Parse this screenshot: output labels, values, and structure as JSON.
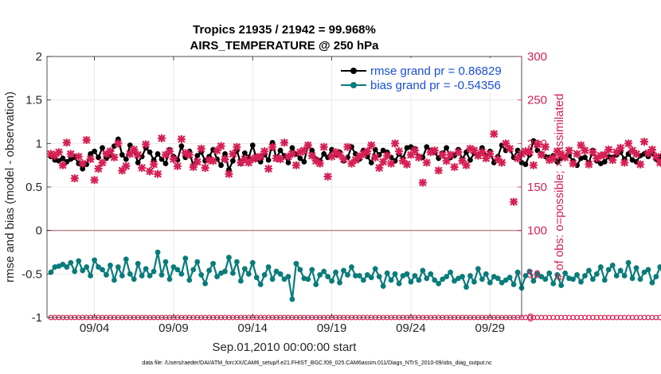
{
  "chart_data": {
    "type": "line",
    "title_line1": "Tropics 21935 / 21942 = 99.968%",
    "title_line2": "AIRS_TEMPERATURE @ 250 hPa",
    "xlabel": "Sep.01,2010 00:00:00 start",
    "ylabel_left": "rmse and bias (model - observation)",
    "ylabel_right": "# of obs: o=possible; ×=assimilated",
    "xlim": [
      1.0,
      31.0
    ],
    "ylim_left": [
      -1,
      2
    ],
    "ylim_right": [
      0,
      300
    ],
    "x_ticks": [
      {
        "value": 4,
        "label": "09/04"
      },
      {
        "value": 9,
        "label": "09/09"
      },
      {
        "value": 14,
        "label": "09/14"
      },
      {
        "value": 19,
        "label": "09/19"
      },
      {
        "value": 24,
        "label": "09/24"
      },
      {
        "value": 29,
        "label": "09/29"
      }
    ],
    "y_ticks_left": [
      {
        "value": 2,
        "label": "2"
      },
      {
        "value": 1.5,
        "label": "1.5"
      },
      {
        "value": 1,
        "label": "1"
      },
      {
        "value": 0.5,
        "label": "0.5"
      },
      {
        "value": 0,
        "label": "0"
      },
      {
        "value": -0.5,
        "label": "-0.5"
      },
      {
        "value": -1,
        "label": "-1"
      }
    ],
    "y_ticks_right": [
      {
        "value": 300,
        "label": "300"
      },
      {
        "value": 250,
        "label": "250"
      },
      {
        "value": 200,
        "label": "200"
      },
      {
        "value": 150,
        "label": "150"
      },
      {
        "value": 100,
        "label": "100"
      },
      {
        "value": 50,
        "label": "50"
      },
      {
        "value": 0,
        "label": "0"
      }
    ],
    "x_start": 1.25,
    "x_step": 0.25,
    "legend": [
      {
        "label": "rmse grand pr = 0.86829",
        "color": "#000000"
      },
      {
        "label": "bias grand pr = -0.54356",
        "color": "#0a7b7b"
      }
    ],
    "series": [
      {
        "name": "rmse",
        "axis": "left",
        "color": "#000000",
        "values": [
          0.85,
          0.81,
          0.8,
          0.83,
          0.79,
          0.82,
          0.84,
          0.77,
          0.71,
          0.76,
          0.88,
          0.91,
          0.84,
          0.95,
          0.83,
          0.86,
          0.97,
          1.05,
          0.87,
          0.82,
          0.98,
          0.92,
          0.78,
          0.85,
          0.95,
          0.9,
          0.81,
          0.88,
          0.82,
          0.77,
          0.93,
          0.85,
          0.81,
          0.97,
          0.84,
          0.91,
          0.74,
          0.86,
          0.9,
          0.8,
          0.85,
          0.93,
          0.82,
          0.75,
          0.88,
          0.7,
          0.8,
          0.92,
          0.77,
          0.89,
          0.84,
          0.98,
          0.82,
          0.79,
          0.87,
          0.81,
          1.01,
          0.83,
          0.92,
          0.86,
          0.78,
          0.95,
          0.88,
          0.83,
          0.79,
          0.98,
          0.92,
          0.82,
          0.8,
          0.88,
          0.84,
          0.93,
          0.87,
          0.9,
          0.8,
          0.84,
          0.96,
          0.88,
          0.82,
          0.92,
          0.85,
          0.78,
          0.93,
          0.87,
          0.92,
          0.9,
          0.84,
          0.8,
          0.88,
          0.83,
          0.95,
          0.96,
          0.94,
          0.85,
          0.84,
          0.96,
          0.92,
          0.9,
          0.83,
          0.89,
          0.95,
          0.84,
          0.86,
          0.93,
          0.82,
          0.9,
          0.81,
          0.89,
          0.86,
          0.95,
          0.86,
          0.91,
          0.78,
          0.85,
          0.98,
          0.92,
          0.94,
          0.84,
          0.92,
          0.78,
          0.76,
          0.87,
          1.03,
          0.92,
          0.88,
          0.85,
          0.84,
          0.86,
          0.79,
          0.83,
          0.85,
          0.86,
          0.8,
          0.75,
          0.83,
          0.84,
          0.78,
          0.92,
          0.8,
          0.77,
          0.79,
          0.85,
          0.84,
          0.87,
          0.9,
          0.82,
          0.88,
          0.81,
          0.79,
          0.86,
          0.88,
          0.85,
          0.89,
          0.82,
          0.84,
          0.87,
          0.92,
          0.85,
          0.8,
          0.84,
          0.88,
          0.83,
          0.9,
          0.88,
          1.14,
          0.95,
          0.89,
          0.91,
          0.92,
          1.12,
          0.93,
          0.85,
          0.88
        ]
      },
      {
        "name": "bias",
        "axis": "left",
        "color": "#0a7b7b",
        "values": [
          -0.48,
          -0.42,
          -0.41,
          -0.39,
          -0.42,
          -0.37,
          -0.47,
          -0.35,
          -0.46,
          -0.42,
          -0.52,
          -0.34,
          -0.42,
          -0.45,
          -0.51,
          -0.4,
          -0.57,
          -0.42,
          -0.52,
          -0.33,
          -0.5,
          -0.56,
          -0.38,
          -0.52,
          -0.44,
          -0.52,
          -0.47,
          -0.25,
          -0.51,
          -0.36,
          -0.56,
          -0.42,
          -0.45,
          -0.5,
          -0.32,
          -0.57,
          -0.45,
          -0.36,
          -0.51,
          -0.61,
          -0.46,
          -0.38,
          -0.53,
          -0.49,
          -0.47,
          -0.31,
          -0.49,
          -0.36,
          -0.58,
          -0.44,
          -0.5,
          -0.37,
          -0.54,
          -0.62,
          -0.51,
          -0.42,
          -0.56,
          -0.47,
          -0.5,
          -0.56,
          -0.53,
          -0.79,
          -0.38,
          -0.45,
          -0.55,
          -0.56,
          -0.45,
          -0.62,
          -0.51,
          -0.47,
          -0.53,
          -0.58,
          -0.48,
          -0.6,
          -0.46,
          -0.51,
          -0.42,
          -0.52,
          -0.52,
          -0.57,
          -0.51,
          -0.54,
          -0.44,
          -0.53,
          -0.64,
          -0.49,
          -0.57,
          -0.5,
          -0.61,
          -0.52,
          -0.5,
          -0.59,
          -0.52,
          -0.57,
          -0.46,
          -0.55,
          -0.5,
          -0.57,
          -0.61,
          -0.56,
          -0.53,
          -0.48,
          -0.58,
          -0.55,
          -0.53,
          -0.65,
          -0.52,
          -0.59,
          -0.44,
          -0.56,
          -0.5,
          -0.6,
          -0.53,
          -0.55,
          -0.6,
          -0.57,
          -0.54,
          -0.62,
          -0.48,
          -0.66,
          -0.52,
          -0.47,
          -0.58,
          -0.5,
          -0.53,
          -0.56,
          -0.49,
          -0.61,
          -0.51,
          -0.63,
          -0.49,
          -0.55,
          -0.56,
          -0.51,
          -0.59,
          -0.52,
          -0.46,
          -0.56,
          -0.5,
          -0.42,
          -0.57,
          -0.45,
          -0.4,
          -0.52,
          -0.46,
          -0.52,
          -0.37,
          -0.55,
          -0.43,
          -0.56,
          -0.48,
          -0.45,
          -0.6,
          -0.53,
          -0.42,
          -0.54,
          -0.5,
          -0.6,
          -0.55,
          -0.55,
          -0.56,
          -0.53,
          -0.52,
          -0.56,
          -0.5,
          -0.64,
          -0.7,
          -0.57,
          -0.55,
          -0.62,
          -0.81,
          -0.63,
          -0.59,
          -0.74,
          -0.64,
          -0.58,
          -0.59
        ]
      },
      {
        "name": "obs possible",
        "axis": "right",
        "color": "#d62054",
        "marker": "o",
        "values": [
          0,
          0,
          0,
          0,
          0,
          0,
          0,
          0,
          0,
          0,
          0,
          0,
          0,
          0,
          0,
          0,
          0,
          0,
          0,
          0,
          0,
          0,
          0,
          0,
          0,
          0,
          0,
          0,
          0,
          0,
          0,
          0,
          0,
          0,
          0,
          0,
          0,
          0,
          0,
          0,
          0,
          0,
          0,
          0,
          0,
          0,
          0,
          0,
          0,
          0,
          0,
          0,
          0,
          0,
          0,
          0,
          0,
          0,
          0,
          0,
          0,
          0,
          0,
          0,
          0,
          0,
          0,
          0,
          0,
          0,
          0,
          0,
          0,
          0,
          0,
          0,
          0,
          0,
          0,
          0,
          0,
          0,
          0,
          0,
          0,
          0,
          0,
          0,
          0,
          0,
          0,
          0,
          0,
          0,
          0,
          0,
          0,
          0,
          0,
          0,
          0,
          0,
          0,
          0,
          0,
          0,
          0,
          0,
          0,
          0,
          0,
          0,
          0,
          0,
          0,
          0,
          0,
          0,
          0,
          0,
          0,
          0,
          0,
          0,
          0,
          0,
          0,
          0,
          0,
          0,
          0,
          0,
          0,
          0,
          0,
          0,
          0,
          0,
          0,
          0,
          0,
          0,
          0,
          0,
          0,
          0,
          0,
          0,
          0,
          0,
          0,
          0,
          0,
          0,
          0,
          0,
          0,
          0,
          0,
          0,
          0,
          0,
          0,
          0,
          0,
          0,
          0,
          0,
          0,
          0,
          0,
          0,
          0,
          0,
          0,
          0,
          0,
          0,
          0,
          0
        ]
      },
      {
        "name": "obs assimilated",
        "axis": "right",
        "color": "#d62054",
        "marker": "x",
        "values": [
          188,
          186,
          190,
          175,
          201,
          188,
          160,
          185,
          177,
          204,
          182,
          158,
          171,
          178,
          188,
          191,
          184,
          200,
          169,
          174,
          188,
          193,
          187,
          172,
          199,
          168,
          176,
          165,
          206,
          187,
          191,
          182,
          174,
          205,
          189,
          187,
          173,
          179,
          194,
          172,
          181,
          180,
          192,
          197,
          182,
          165,
          188,
          196,
          178,
          182,
          178,
          182,
          184,
          185,
          191,
          171,
          196,
          183,
          182,
          201,
          185,
          188,
          175,
          190,
          192,
          198,
          186,
          180,
          177,
          196,
          162,
          185,
          190,
          187,
          182,
          196,
          177,
          181,
          185,
          188,
          191,
          198,
          184,
          172,
          179,
          186,
          177,
          200,
          191,
          180,
          176,
          187,
          192,
          184,
          155,
          178,
          190,
          192,
          169,
          187,
          180,
          187,
          173,
          190,
          180,
          175,
          194,
          192,
          186,
          190,
          183,
          188,
          211,
          182,
          178,
          200,
          194,
          133,
          183,
          188,
          191,
          190,
          175,
          199,
          187,
          196,
          181,
          183,
          191,
          187,
          184,
          192,
          177,
          188,
          198,
          192,
          176,
          190,
          183,
          186,
          187,
          193,
          181,
          190,
          195,
          178,
          200,
          192,
          188,
          176,
          202,
          189,
          193,
          185,
          178,
          188,
          197,
          192,
          183,
          198,
          185,
          193,
          191,
          197,
          205,
          192,
          188,
          198,
          196,
          186,
          185,
          159,
          150,
          168,
          116,
          173,
          191,
          207,
          195,
          210,
          166
        ]
      }
    ],
    "zero_line_color": "#b78d8d",
    "right_axis_color": "#d62054"
  },
  "footer": {
    "data_file": "data file: /Users/raeder/DAI/ATM_forcXX/CAM6_setup/f.e21.FHIST_BGC.f09_025.CAM6assim.011/Diags_NTrS_2010-09/obs_diag_output.nc"
  }
}
